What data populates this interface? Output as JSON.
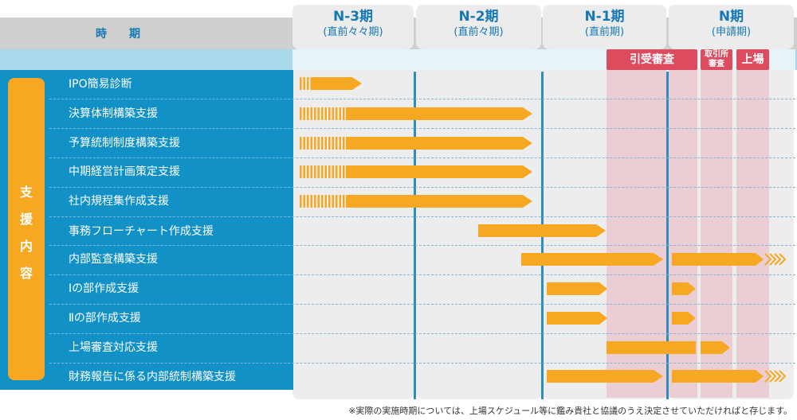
{
  "header": {
    "period_label": "時期",
    "periods": [
      {
        "name": "N-3期",
        "sub": "(直前々々期)"
      },
      {
        "name": "N-2期",
        "sub": "(直前々期)"
      },
      {
        "name": "N-1期",
        "sub": "(直前期)"
      },
      {
        "name": "N期",
        "sub": "(申請期)"
      }
    ]
  },
  "badges": {
    "hikiuke": "引受審査",
    "torihikisho_1": "取引所",
    "torihikisho_2": "審査",
    "jojo": "上場"
  },
  "side_label": [
    "支",
    "援",
    "内",
    "容"
  ],
  "rows": [
    "IPO簡易診断",
    "決算体制構築支援",
    "予算統制制度構築支援",
    "中期経営計画策定支援",
    "社内規程集作成支援",
    "事務フローチャート作成支援",
    "内部監査構築支援",
    "Ⅰの部作成支援",
    "Ⅱの部作成支援",
    "上場審査対応支援",
    "財務報告に係る内部統制構築支援"
  ],
  "footnote": "※実際の実施時期については、上場スケジュール等に鑑み貴社と協議のうえ決定させていただければと存じます。",
  "colors": {
    "arrow": "#f6a822",
    "panel": "#1191c6",
    "header_text": "#1679b4",
    "badge": "#dc4b5e",
    "side_label": "#f6a822"
  }
}
